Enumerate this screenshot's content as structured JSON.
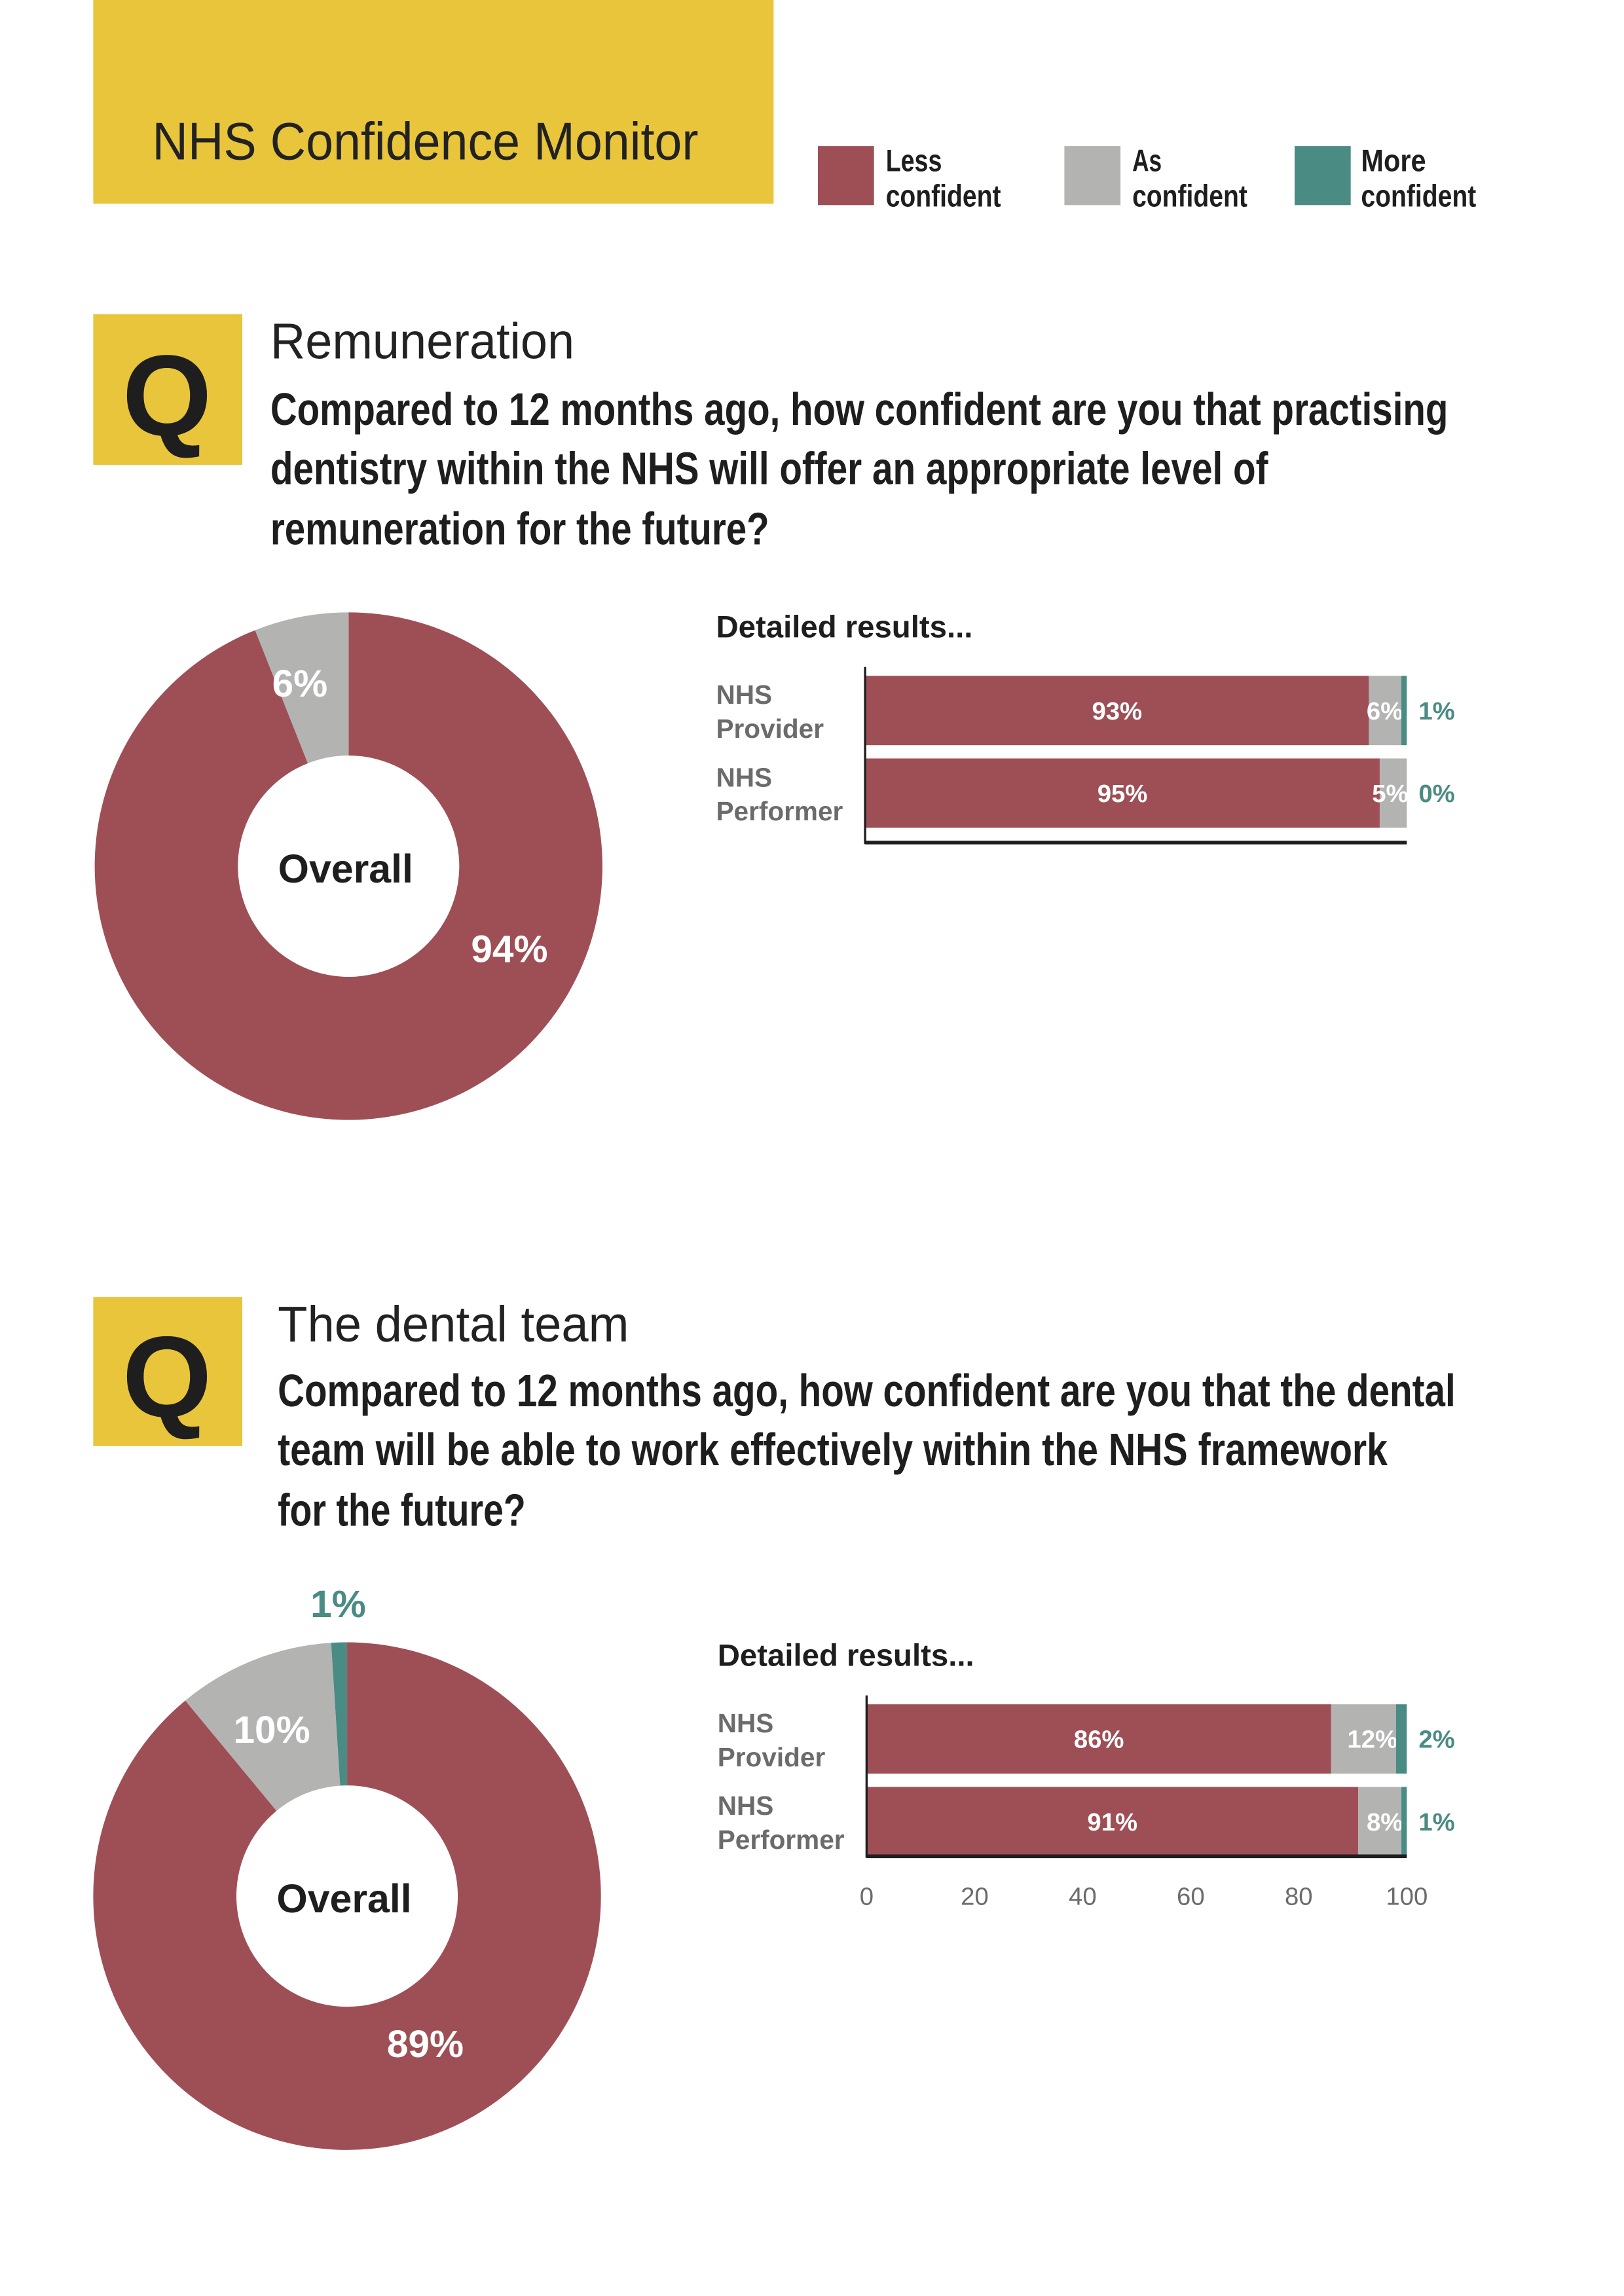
{
  "header": {
    "title": "NHS Confidence Monitor"
  },
  "legend": [
    {
      "line1": "Less",
      "line2": "confident",
      "color": "#9e4f55"
    },
    {
      "line1": "As",
      "line2": "confident",
      "color": "#b3b3b2"
    },
    {
      "line1": "More",
      "line2": "confident",
      "color": "#4a8b84"
    }
  ],
  "colors": {
    "yellow": "#e9c53b",
    "less": "#9e4f55",
    "as": "#b3b3b2",
    "more": "#4a8b84"
  },
  "sections": [
    {
      "q_badge": "Q",
      "topic": "Remuneration",
      "question_lines": [
        "Compared to 12 months ago, how confident are you that practising",
        "dentistry within the NHS will offer an appropriate level of",
        "remuneration for the future?"
      ],
      "detailed_title": "Detailed results..."
    },
    {
      "q_badge": "Q",
      "topic": "The dental team",
      "question_lines": [
        "Compared to 12 months ago, how confident are you that the dental",
        "team will be able to work effectively within the NHS framework",
        "for the future?"
      ],
      "detailed_title": "Detailed results..."
    }
  ],
  "chart_data": [
    {
      "type": "pie",
      "title": "Overall",
      "categories": [
        "Less confident",
        "As confident",
        "More confident"
      ],
      "values": [
        94,
        6,
        0
      ],
      "labels": [
        "94%",
        "6%",
        ""
      ]
    },
    {
      "type": "bar",
      "orientation": "horizontal",
      "stacked": true,
      "title": "Detailed results...",
      "categories": [
        [
          "NHS",
          "Provider"
        ],
        [
          "NHS",
          "Performer"
        ]
      ],
      "series": [
        {
          "name": "Less confident",
          "values": [
            93,
            95
          ],
          "labels": [
            "93%",
            "95%"
          ]
        },
        {
          "name": "As confident",
          "values": [
            6,
            5
          ],
          "labels": [
            "6%",
            "5%"
          ]
        },
        {
          "name": "More confident",
          "values": [
            1,
            0
          ],
          "labels": [
            "1%",
            "0%"
          ]
        }
      ],
      "xlim": [
        0,
        100
      ],
      "xticks": []
    },
    {
      "type": "pie",
      "title": "Overall",
      "categories": [
        "Less confident",
        "As confident",
        "More confident"
      ],
      "values": [
        89,
        10,
        1
      ],
      "labels": [
        "89%",
        "10%",
        "1%"
      ]
    },
    {
      "type": "bar",
      "orientation": "horizontal",
      "stacked": true,
      "title": "Detailed results...",
      "categories": [
        [
          "NHS",
          "Provider"
        ],
        [
          "NHS",
          "Performer"
        ]
      ],
      "series": [
        {
          "name": "Less confident",
          "values": [
            86,
            91
          ],
          "labels": [
            "86%",
            "91%"
          ]
        },
        {
          "name": "As confident",
          "values": [
            12,
            8
          ],
          "labels": [
            "12%",
            "8%"
          ]
        },
        {
          "name": "More confident",
          "values": [
            2,
            1
          ],
          "labels": [
            "2%",
            "1%"
          ]
        }
      ],
      "xlim": [
        0,
        100
      ],
      "xticks": [
        "0",
        "20",
        "40",
        "60",
        "80",
        "100"
      ]
    }
  ]
}
